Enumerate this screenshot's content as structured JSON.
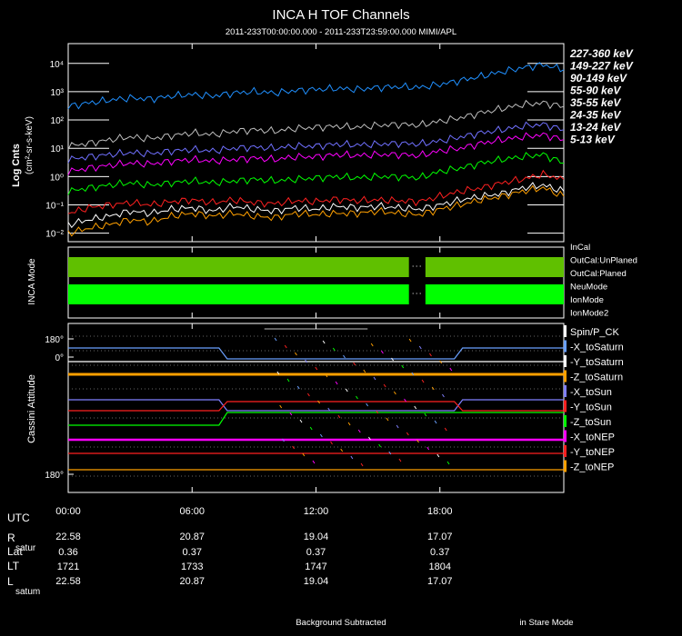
{
  "title": "INCA H TOF Channels",
  "subtitle": "2011-233T00:00:00.000 - 2011-233T23:59:00.000 MIMI/APL",
  "chart_data": [
    {
      "type": "line",
      "panel": "flux",
      "ylabel": "Log Cnts",
      "yunits": "(cm²-sr-s-keV)",
      "yscale": "log",
      "ylim": [
        0.005,
        50000
      ],
      "xlim": [
        0,
        24
      ],
      "ytick_labels": [
        "10⁴",
        "10³",
        "10²",
        "10¹",
        "10⁰",
        "10⁻¹",
        "10⁻²"
      ],
      "ytick_values": [
        10000,
        1000,
        100,
        10,
        1,
        0.1,
        0.01
      ],
      "series": [
        {
          "name": "227-360 keV",
          "color": "#ffffff",
          "x": [
            0,
            1,
            2,
            3,
            4,
            5,
            6,
            7,
            8,
            9,
            10,
            11,
            12,
            13,
            14,
            15,
            16,
            17,
            18,
            19,
            20,
            21,
            22,
            23,
            24
          ],
          "values": [
            0.02,
            0.03,
            0.04,
            0.06,
            0.05,
            0.07,
            0.08,
            0.06,
            0.09,
            0.07,
            0.06,
            0.08,
            0.07,
            0.09,
            0.08,
            0.09,
            0.08,
            0.07,
            0.1,
            0.15,
            0.2,
            0.25,
            0.4,
            0.5,
            0.3
          ]
        },
        {
          "name": "149-227 keV",
          "color": "#ffa000",
          "x": [
            0,
            1,
            2,
            3,
            4,
            5,
            6,
            7,
            8,
            9,
            10,
            11,
            12,
            13,
            14,
            15,
            16,
            17,
            18,
            19,
            20,
            21,
            22,
            23,
            24
          ],
          "values": [
            0.01,
            0.015,
            0.02,
            0.03,
            0.025,
            0.04,
            0.05,
            0.04,
            0.05,
            0.04,
            0.035,
            0.05,
            0.045,
            0.05,
            0.05,
            0.06,
            0.05,
            0.045,
            0.07,
            0.1,
            0.15,
            0.2,
            0.3,
            0.4,
            0.2
          ]
        },
        {
          "name": "90-149 keV",
          "color": "#ff2020",
          "x": [
            0,
            1,
            2,
            3,
            4,
            5,
            6,
            7,
            8,
            9,
            10,
            11,
            12,
            13,
            14,
            15,
            16,
            17,
            18,
            19,
            20,
            21,
            22,
            23,
            24
          ],
          "values": [
            0.05,
            0.08,
            0.1,
            0.12,
            0.1,
            0.13,
            0.15,
            0.12,
            0.15,
            0.12,
            0.11,
            0.14,
            0.13,
            0.16,
            0.14,
            0.15,
            0.14,
            0.13,
            0.2,
            0.3,
            0.4,
            0.6,
            0.8,
            1.2,
            0.8
          ]
        },
        {
          "name": "55-90 keV",
          "color": "#00ff00",
          "x": [
            0,
            1,
            2,
            3,
            4,
            5,
            6,
            7,
            8,
            9,
            10,
            11,
            12,
            13,
            14,
            15,
            16,
            17,
            18,
            19,
            20,
            21,
            22,
            23,
            24
          ],
          "values": [
            0.3,
            0.4,
            0.5,
            0.6,
            0.5,
            0.6,
            0.7,
            0.6,
            0.7,
            0.8,
            0.7,
            0.8,
            0.9,
            1.0,
            0.9,
            1.0,
            1.0,
            0.9,
            1.5,
            2.0,
            3.0,
            4.0,
            5.0,
            6.0,
            3.0
          ]
        },
        {
          "name": "35-55 keV",
          "color": "#ff00ff",
          "x": [
            0,
            1,
            2,
            3,
            4,
            5,
            6,
            7,
            8,
            9,
            10,
            11,
            12,
            13,
            14,
            15,
            16,
            17,
            18,
            19,
            20,
            21,
            22,
            23,
            24
          ],
          "values": [
            1.5,
            2,
            2.5,
            3,
            2.8,
            3.5,
            4,
            3.5,
            4,
            4.5,
            4,
            5,
            5,
            6,
            5.5,
            6,
            6,
            5.5,
            8,
            10,
            15,
            20,
            25,
            30,
            20
          ]
        },
        {
          "name": "24-35 keV",
          "color": "#7070ff",
          "x": [
            0,
            1,
            2,
            3,
            4,
            5,
            6,
            7,
            8,
            9,
            10,
            11,
            12,
            13,
            14,
            15,
            16,
            17,
            18,
            19,
            20,
            21,
            22,
            23,
            24
          ],
          "values": [
            4,
            5,
            6,
            7,
            6.5,
            8,
            9,
            8,
            10,
            11,
            10,
            12,
            12,
            14,
            13,
            14,
            15,
            14,
            18,
            25,
            35,
            45,
            60,
            70,
            45
          ]
        },
        {
          "name": "13-24 keV",
          "color": "#c0c0c0",
          "x": [
            0,
            1,
            2,
            3,
            4,
            5,
            6,
            7,
            8,
            9,
            10,
            11,
            12,
            13,
            14,
            15,
            16,
            17,
            18,
            19,
            20,
            21,
            22,
            23,
            24
          ],
          "values": [
            12,
            15,
            20,
            25,
            22,
            28,
            35,
            30,
            40,
            45,
            40,
            50,
            55,
            60,
            55,
            65,
            70,
            65,
            90,
            120,
            180,
            250,
            350,
            400,
            300
          ]
        },
        {
          "name": "5-13 keV",
          "color": "#2090ff",
          "x": [
            0,
            1,
            2,
            3,
            4,
            5,
            6,
            7,
            8,
            9,
            10,
            11,
            12,
            13,
            14,
            15,
            16,
            17,
            18,
            19,
            20,
            21,
            22,
            23,
            24
          ],
          "values": [
            300,
            400,
            500,
            600,
            550,
            700,
            800,
            700,
            900,
            1000,
            900,
            1100,
            1200,
            1300,
            1200,
            1400,
            1500,
            1400,
            1800,
            2500,
            3500,
            5000,
            7000,
            9000,
            6000
          ]
        }
      ]
    },
    {
      "type": "table",
      "panel": "inca-mode",
      "ylabel": "INCA Mode",
      "legend": [
        {
          "name": "InCal",
          "color": "#60c000"
        },
        {
          "name": "OutCal:UnPlaned",
          "color": "#ff2020"
        },
        {
          "name": "OutCal:Planed",
          "color": "#8080ff"
        },
        {
          "name": "NeuMode",
          "color": "#c0c0c0"
        },
        {
          "name": "IonMode",
          "color": "#00ff00"
        },
        {
          "name": "IonMode2",
          "color": "#ff00ff"
        }
      ],
      "bars": [
        {
          "mode": "InCal",
          "color": "#60c000",
          "intervals": [
            [
              0,
              16.5
            ],
            [
              17.3,
              24
            ]
          ]
        },
        {
          "mode": "IonMode",
          "color": "#00ff00",
          "intervals": [
            [
              0,
              16.5
            ],
            [
              17.3,
              24
            ]
          ]
        }
      ]
    },
    {
      "type": "line",
      "panel": "attitude",
      "ylabel": "Cassini Attitude",
      "ytick_labels": [
        "180°",
        "0°",
        "180°"
      ],
      "series": [
        {
          "name": "Spin/P_CK",
          "color": "#ffffff"
        },
        {
          "name": "-X_toSaturn",
          "color": "#6aa0ff"
        },
        {
          "name": "-Y_toSaturn",
          "color": "#ffffff"
        },
        {
          "name": "-Z_toSaturn",
          "color": "#ffa000"
        },
        {
          "name": "-X_toSun",
          "color": "#8080ff"
        },
        {
          "name": "-Y_toSun",
          "color": "#ff2020"
        },
        {
          "name": "-Z_toSun",
          "color": "#00ff00"
        },
        {
          "name": "-X_toNEP",
          "color": "#ff00ff"
        },
        {
          "name": "-Y_toNEP",
          "color": "#ff2020"
        },
        {
          "name": "-Z_toNEP",
          "color": "#ffa000"
        }
      ]
    }
  ],
  "xaxis": {
    "tick_labels": [
      "00:00",
      "06:00",
      "12:00",
      "18:00"
    ],
    "tick_hours": [
      0,
      6,
      12,
      18
    ],
    "rows": [
      {
        "label": "UTC",
        "sub": "",
        "values": [
          "",
          "",
          "",
          ""
        ]
      },
      {
        "label": "R",
        "sub": "satur",
        "values": [
          "22.58",
          "20.87",
          "19.04",
          "17.07"
        ]
      },
      {
        "label": "Lat",
        "sub": "",
        "values": [
          "0.36",
          "0.37",
          "0.37",
          "0.37"
        ]
      },
      {
        "label": "LT",
        "sub": "",
        "values": [
          "1721",
          "1733",
          "1747",
          "1804"
        ]
      },
      {
        "label": "L",
        "sub": "satum",
        "values": [
          "22.58",
          "20.87",
          "19.04",
          "17.07"
        ]
      }
    ]
  },
  "footer": {
    "left": "Background Subtracted",
    "right": "in Stare Mode"
  }
}
